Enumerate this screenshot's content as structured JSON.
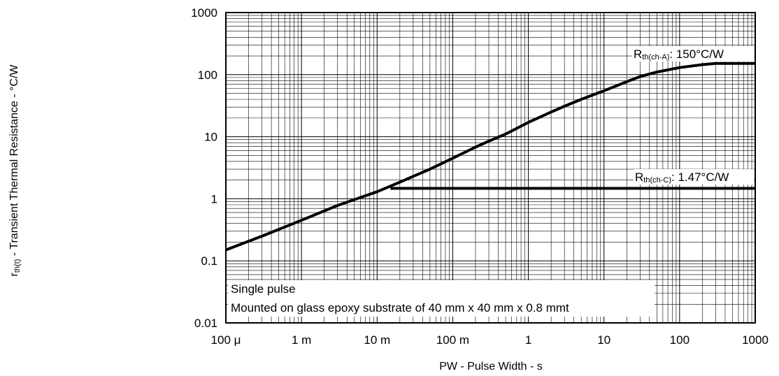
{
  "chart_data": {
    "type": "line",
    "x_scale": "log",
    "y_scale": "log",
    "xlabel": "PW - Pulse Width - s",
    "ylabel": {
      "symbol": "r",
      "subscript": "th(t)",
      "text": " - Transient Thermal Resistance - °C/W"
    },
    "xlim": [
      0.0001,
      1000
    ],
    "ylim": [
      0.01,
      1000
    ],
    "x_ticks": [
      {
        "value": 0.0001,
        "label": "100 μ"
      },
      {
        "value": 0.001,
        "label": "1 m"
      },
      {
        "value": 0.01,
        "label": "10 m"
      },
      {
        "value": 0.1,
        "label": "100 m"
      },
      {
        "value": 1,
        "label": "1"
      },
      {
        "value": 10,
        "label": "10"
      },
      {
        "value": 100,
        "label": "100"
      },
      {
        "value": 1000,
        "label": "1000"
      }
    ],
    "y_ticks": [
      {
        "value": 0.01,
        "label": "0.01"
      },
      {
        "value": 0.1,
        "label": "0.1"
      },
      {
        "value": 1,
        "label": "1"
      },
      {
        "value": 10,
        "label": "10"
      },
      {
        "value": 100,
        "label": "100"
      },
      {
        "value": 1000,
        "label": "1000"
      }
    ],
    "grid": true,
    "series": [
      {
        "x": [
          0.0001,
          0.0003,
          0.001,
          0.003,
          0.01,
          0.015,
          0.02,
          0.03,
          0.05,
          0.1,
          0.2,
          0.3,
          0.5,
          1,
          2,
          3,
          5,
          10,
          20,
          30,
          50,
          100,
          200,
          300,
          500,
          1000
        ],
        "y": [
          0.15,
          0.25,
          0.45,
          0.78,
          1.3,
          1.6,
          1.85,
          2.3,
          3.0,
          4.5,
          6.8,
          8.5,
          11,
          17,
          25,
          31,
          40,
          55,
          77,
          93,
          110,
          130,
          145,
          152,
          152,
          152
        ]
      },
      {
        "x": [
          0.015,
          0.03,
          0.1,
          1,
          10,
          100,
          1000
        ],
        "y": [
          1.47,
          1.47,
          1.47,
          1.47,
          1.47,
          1.47,
          1.47
        ]
      }
    ],
    "annotations": [
      {
        "main": "R",
        "sub": "th(ch-A)",
        "rest": ": 150°C/W"
      },
      {
        "main": "R",
        "sub": "th(ch-C)",
        "rest": ": 1.47°C/W"
      }
    ],
    "notes": [
      "Single pulse",
      "Mounted on glass epoxy substrate of 40 mm x 40 mm x 0.8 mmt"
    ]
  }
}
